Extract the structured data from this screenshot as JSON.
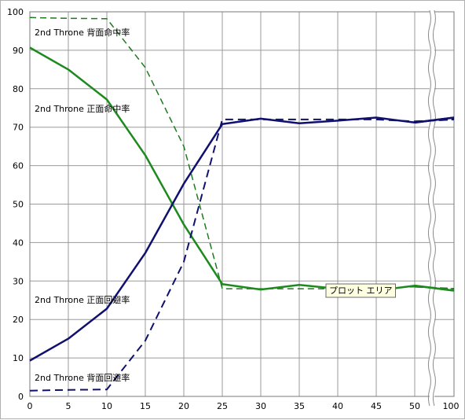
{
  "chart_data": {
    "type": "line",
    "title": "",
    "xlabel": "",
    "ylabel": "",
    "ylim": [
      0,
      100
    ],
    "x_ticks": [
      "0",
      "5",
      "10",
      "15",
      "20",
      "25",
      "30",
      "35",
      "40",
      "45",
      "50",
      "100"
    ],
    "y_ticks": [
      "0",
      "10",
      "20",
      "30",
      "40",
      "50",
      "60",
      "70",
      "80",
      "90",
      "100"
    ],
    "axis_break": "between 50 and 100",
    "grid": true,
    "series": [
      {
        "name": "2nd Throne 背面命中率",
        "color": "#1e7a1e",
        "style": "dashed",
        "x": [
          0,
          5,
          10,
          15,
          20,
          25,
          30,
          35,
          40,
          45,
          50,
          100
        ],
        "y": [
          98.5,
          98.3,
          98.2,
          85.5,
          65,
          28,
          28,
          28,
          28,
          28,
          28.5,
          28
        ]
      },
      {
        "name": "2nd Throne 正面命中率",
        "color": "#1e8a1e",
        "style": "solid",
        "x": [
          0,
          5,
          10,
          15,
          20,
          25,
          30,
          35,
          40,
          45,
          50,
          100
        ],
        "y": [
          90.7,
          85,
          77.2,
          62.7,
          44.7,
          29.2,
          27.8,
          29,
          28,
          27.5,
          28.8,
          27.5
        ]
      },
      {
        "name": "2nd Throne 正面回避率",
        "color": "#10106e",
        "style": "solid",
        "x": [
          0,
          5,
          10,
          15,
          20,
          25,
          30,
          35,
          40,
          45,
          50,
          100
        ],
        "y": [
          9.3,
          15,
          22.8,
          37.3,
          55.3,
          70.8,
          72.2,
          71,
          71.7,
          72.5,
          71.2,
          72.5
        ]
      },
      {
        "name": "2nd Throne 背面回避率",
        "color": "#10106e",
        "style": "dashed",
        "x": [
          0,
          5,
          10,
          15,
          20,
          25,
          30,
          35,
          40,
          45,
          50,
          100
        ],
        "y": [
          1.5,
          1.7,
          1.8,
          14.5,
          35,
          72,
          72,
          72,
          72,
          72,
          71.5,
          72
        ]
      }
    ],
    "tooltip": "プロット エリア"
  }
}
